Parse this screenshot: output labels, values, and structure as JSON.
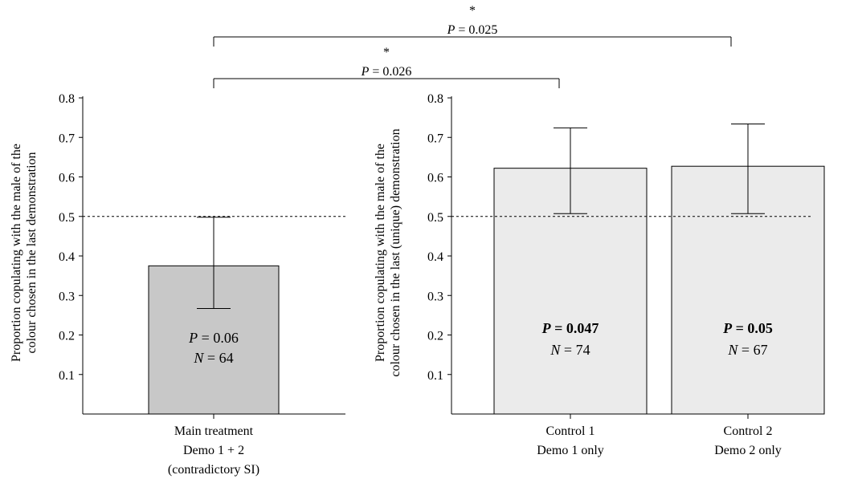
{
  "chart_data": [
    {
      "type": "bar",
      "panel": "left",
      "ylabel_lines": [
        "Proportion copulating with the male of the",
        "colour chosen in the last demonstration"
      ],
      "ylim": [
        0,
        0.8
      ],
      "yticks": [
        "0.1",
        "0.2",
        "0.3",
        "0.4",
        "0.5",
        "0.6",
        "0.7",
        "0.8"
      ],
      "reference_line": 0.5,
      "categories": [
        {
          "lines": [
            "Main treatment",
            "Demo 1 + 2",
            "(contradictory SI)"
          ]
        }
      ],
      "values": [
        0.375
      ],
      "error_low": [
        0.267
      ],
      "error_high": [
        0.498
      ],
      "bar_color": "#c8c8c8",
      "bar_labels": [
        {
          "p_var": "P",
          "p_text": " = 0.06",
          "n_var": "N",
          "n_text": " = 64",
          "bold": false
        }
      ]
    },
    {
      "type": "bar",
      "panel": "right",
      "ylabel_lines": [
        "Proportion copulating with the male of the",
        "colour chosen in the last (unique) demonstration"
      ],
      "ylim": [
        0,
        0.8
      ],
      "yticks": [
        "0.1",
        "0.2",
        "0.3",
        "0.4",
        "0.5",
        "0.6",
        "0.7",
        "0.8"
      ],
      "reference_line": 0.5,
      "categories": [
        {
          "lines": [
            "Control 1",
            "Demo 1 only"
          ]
        },
        {
          "lines": [
            "Control 2",
            "Demo 2 only"
          ]
        }
      ],
      "values": [
        0.622,
        0.627
      ],
      "error_low": [
        0.507,
        0.507
      ],
      "error_high": [
        0.724,
        0.734
      ],
      "bar_color": "#ebebeb",
      "bar_labels": [
        {
          "p_var": "P",
          "p_text": " = 0.047",
          "n_var": "N",
          "n_text": " = 74",
          "bold": true
        },
        {
          "p_var": "P",
          "p_text": " = 0.05",
          "n_var": "N",
          "n_text": " = 67",
          "bold": true
        }
      ]
    }
  ],
  "comparisons": [
    {
      "star": "*",
      "p_var": "P",
      "p_text": " = 0.025"
    },
    {
      "star": "*",
      "p_var": "P",
      "p_text": " = 0.026"
    }
  ]
}
